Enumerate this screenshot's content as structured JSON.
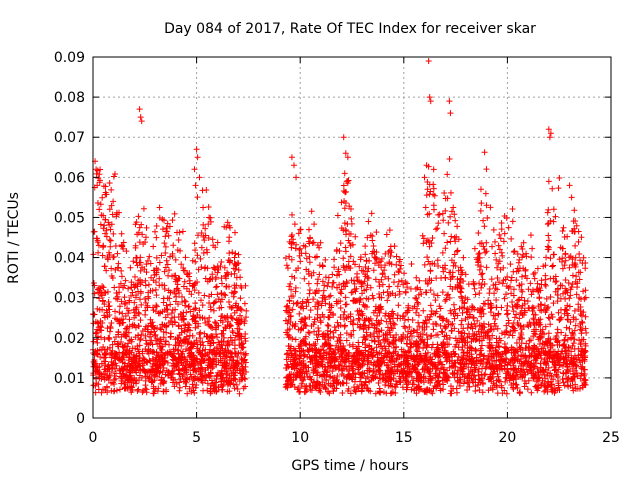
{
  "chart_data": {
    "type": "scatter",
    "title": "Day 084 of 2017, Rate Of TEC Index for receiver skar",
    "xlabel": "GPS time / hours",
    "ylabel": "ROTI / TECUs",
    "xlim": [
      0,
      25
    ],
    "ylim": [
      0,
      0.09
    ],
    "x_ticks": [
      0,
      5,
      10,
      15,
      20,
      25
    ],
    "y_ticks": [
      0,
      0.01,
      0.02,
      0.03,
      0.04,
      0.05,
      0.06,
      0.07,
      0.08,
      0.09
    ],
    "grid": true,
    "marker": "+",
    "series_color": "#ff0000",
    "data_gap": [
      7.4,
      9.3
    ],
    "outliers": [
      [
        0.1,
        0.064
      ],
      [
        0.15,
        0.062
      ],
      [
        0.2,
        0.058
      ],
      [
        0.3,
        0.052
      ],
      [
        2.25,
        0.077
      ],
      [
        2.3,
        0.075
      ],
      [
        2.35,
        0.074
      ],
      [
        5.0,
        0.067
      ],
      [
        5.05,
        0.065
      ],
      [
        4.9,
        0.062
      ],
      [
        4.95,
        0.058
      ],
      [
        9.6,
        0.065
      ],
      [
        9.7,
        0.063
      ],
      [
        9.8,
        0.06
      ],
      [
        12.1,
        0.07
      ],
      [
        12.2,
        0.066
      ],
      [
        12.3,
        0.065
      ],
      [
        12.15,
        0.061
      ],
      [
        12.25,
        0.059
      ],
      [
        16.2,
        0.089
      ],
      [
        16.25,
        0.08
      ],
      [
        16.3,
        0.079
      ],
      [
        16.1,
        0.063
      ],
      [
        16.0,
        0.06
      ],
      [
        17.2,
        0.079
      ],
      [
        17.25,
        0.076
      ],
      [
        22.0,
        0.072
      ],
      [
        22.05,
        0.07
      ],
      [
        22.1,
        0.071
      ],
      [
        22.0,
        0.059
      ],
      [
        23.0,
        0.058
      ],
      [
        23.1,
        0.055
      ]
    ]
  }
}
